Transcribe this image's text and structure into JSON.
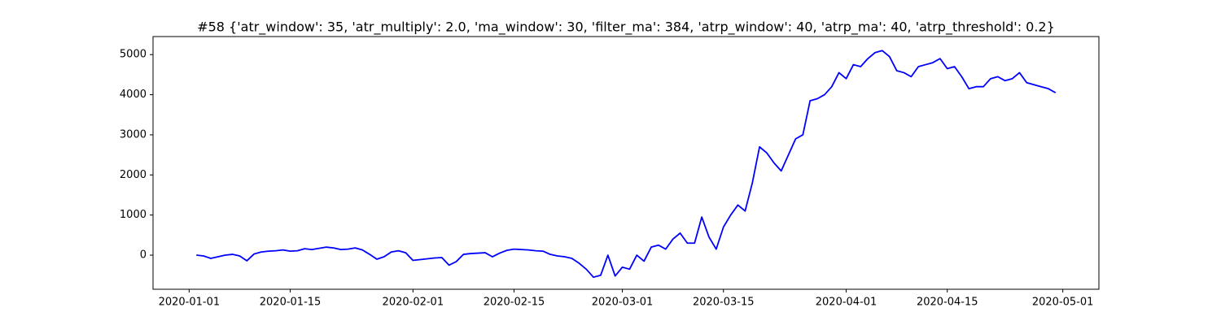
{
  "chart_data": {
    "type": "line",
    "title": "#58 {'atr_window': 35, 'atr_multiply': 2.0, 'ma_window': 30, 'filter_ma': 384, 'atrp_window': 40, 'atrp_ma': 40, 'atrp_threshold': 0.2}",
    "color": "#0000ff",
    "x": [
      "2020-01-02",
      "2020-01-03",
      "2020-01-04",
      "2020-01-05",
      "2020-01-06",
      "2020-01-07",
      "2020-01-08",
      "2020-01-09",
      "2020-01-10",
      "2020-01-11",
      "2020-01-12",
      "2020-01-13",
      "2020-01-14",
      "2020-01-15",
      "2020-01-16",
      "2020-01-17",
      "2020-01-18",
      "2020-01-19",
      "2020-01-20",
      "2020-01-21",
      "2020-01-22",
      "2020-01-23",
      "2020-01-24",
      "2020-01-25",
      "2020-01-26",
      "2020-01-27",
      "2020-01-28",
      "2020-01-29",
      "2020-01-30",
      "2020-01-31",
      "2020-02-01",
      "2020-02-02",
      "2020-02-03",
      "2020-02-04",
      "2020-02-05",
      "2020-02-06",
      "2020-02-07",
      "2020-02-08",
      "2020-02-09",
      "2020-02-10",
      "2020-02-11",
      "2020-02-12",
      "2020-02-13",
      "2020-02-14",
      "2020-02-15",
      "2020-02-16",
      "2020-02-17",
      "2020-02-18",
      "2020-02-19",
      "2020-02-20",
      "2020-02-21",
      "2020-02-22",
      "2020-02-23",
      "2020-02-24",
      "2020-02-25",
      "2020-02-26",
      "2020-02-27",
      "2020-02-28",
      "2020-02-29",
      "2020-03-01",
      "2020-03-02",
      "2020-03-03",
      "2020-03-04",
      "2020-03-05",
      "2020-03-06",
      "2020-03-07",
      "2020-03-08",
      "2020-03-09",
      "2020-03-10",
      "2020-03-11",
      "2020-03-12",
      "2020-03-13",
      "2020-03-14",
      "2020-03-15",
      "2020-03-16",
      "2020-03-17",
      "2020-03-18",
      "2020-03-19",
      "2020-03-20",
      "2020-03-21",
      "2020-03-22",
      "2020-03-23",
      "2020-03-24",
      "2020-03-25",
      "2020-03-26",
      "2020-03-27",
      "2020-03-28",
      "2020-03-29",
      "2020-03-30",
      "2020-03-31",
      "2020-04-01",
      "2020-04-02",
      "2020-04-03",
      "2020-04-04",
      "2020-04-05",
      "2020-04-06",
      "2020-04-07",
      "2020-04-08",
      "2020-04-09",
      "2020-04-10",
      "2020-04-11",
      "2020-04-12",
      "2020-04-13",
      "2020-04-14",
      "2020-04-15",
      "2020-04-16",
      "2020-04-17",
      "2020-04-18",
      "2020-04-19",
      "2020-04-20",
      "2020-04-21",
      "2020-04-22",
      "2020-04-23",
      "2020-04-24",
      "2020-04-25",
      "2020-04-26",
      "2020-04-27",
      "2020-04-28",
      "2020-04-29",
      "2020-04-30"
    ],
    "values": [
      0,
      -20,
      -80,
      -40,
      0,
      20,
      -20,
      -140,
      30,
      80,
      100,
      110,
      130,
      100,
      110,
      160,
      140,
      170,
      200,
      180,
      140,
      150,
      180,
      130,
      20,
      -100,
      -40,
      80,
      110,
      60,
      -130,
      -110,
      -90,
      -70,
      -60,
      -250,
      -160,
      20,
      40,
      50,
      60,
      -40,
      50,
      120,
      150,
      140,
      130,
      110,
      100,
      20,
      -20,
      -40,
      -80,
      -200,
      -350,
      -550,
      -500,
      0,
      -520,
      -300,
      -350,
      0,
      -150,
      200,
      250,
      150,
      400,
      550,
      300,
      300,
      950,
      450,
      150,
      700,
      1000,
      1250,
      1100,
      1800,
      2700,
      2550,
      2300,
      2100,
      2500,
      2900,
      3000,
      3850,
      3900,
      4000,
      4200,
      4550,
      4400,
      4750,
      4700,
      4900,
      5050,
      5100,
      4950,
      4600,
      4550,
      4450,
      4700,
      4750,
      4800,
      4900,
      4650,
      4700,
      4450,
      4150,
      4200,
      4200,
      4400,
      4450,
      4350,
      4400,
      4550,
      4300,
      4250,
      4200,
      4150,
      4050
    ],
    "xlim": [
      "2019-12-27",
      "2020-05-06"
    ],
    "xticks": [
      "2020-01-01",
      "2020-01-15",
      "2020-02-01",
      "2020-02-15",
      "2020-03-01",
      "2020-03-15",
      "2020-04-01",
      "2020-04-15",
      "2020-05-01"
    ],
    "ylim": [
      -850,
      5450
    ],
    "yticks": [
      0,
      1000,
      2000,
      3000,
      4000,
      5000
    ]
  }
}
